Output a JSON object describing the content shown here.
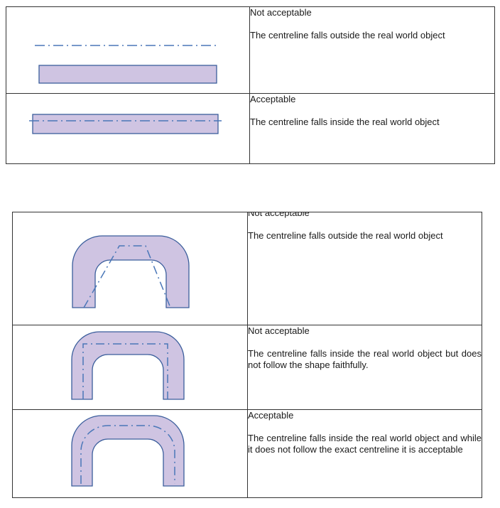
{
  "colors": {
    "fill": "#cfc4e2",
    "outline": "#3b5e9c",
    "centreline": "#4a77b8",
    "border": "#333333"
  },
  "table_top": {
    "rows": [
      {
        "status": "Not acceptable",
        "description": "The centreline falls outside the real world object"
      },
      {
        "status": "Acceptable",
        "description": "The centreline falls inside the real world object"
      }
    ]
  },
  "table_bottom": {
    "rows": [
      {
        "status": "Not acceptable",
        "description": "The centreline falls outside the real world object"
      },
      {
        "status": "Not acceptable",
        "description": "The centreline falls inside the real world object but does not follow the shape faithfully."
      },
      {
        "status": "Acceptable",
        "description": "The centreline falls inside the real world object and while it does not follow the exact centreline it is acceptable"
      }
    ]
  }
}
